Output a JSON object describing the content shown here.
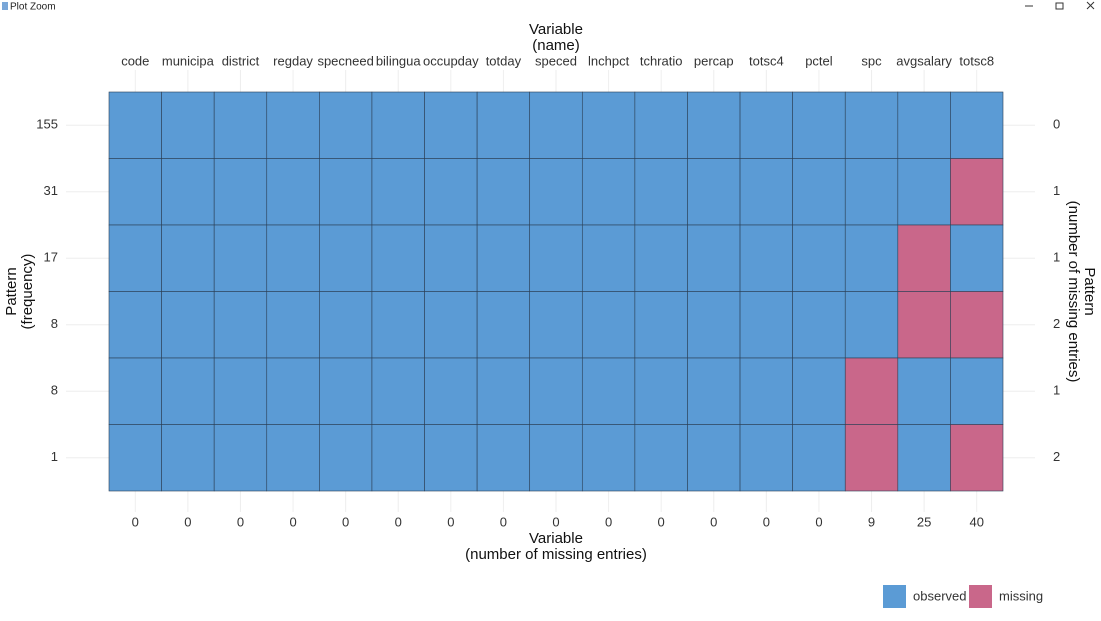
{
  "window": {
    "title": "Plot Zoom"
  },
  "chart_data": {
    "type": "missing-pattern",
    "x_top_title": [
      "Variable",
      "(name)"
    ],
    "x_bottom_title": [
      "Variable",
      "(number of missing entries)"
    ],
    "y_left_title": [
      "Pattern",
      "(frequency)"
    ],
    "y_right_title": [
      "Pattern",
      "(number of missing entries)"
    ],
    "variables": [
      "code",
      "municipa",
      "district",
      "regday",
      "specneed",
      "bilingua",
      "occupday",
      "totday",
      "speced",
      "lnchpct",
      "tchratio",
      "percap",
      "totsc4",
      "pctel",
      "spc",
      "avgsalary",
      "totsc8"
    ],
    "variable_missing": [
      0,
      0,
      0,
      0,
      0,
      0,
      0,
      0,
      0,
      0,
      0,
      0,
      0,
      0,
      9,
      25,
      40
    ],
    "pattern_frequency": [
      155,
      31,
      17,
      8,
      8,
      1
    ],
    "pattern_missing": [
      0,
      1,
      1,
      2,
      1,
      2
    ],
    "pattern": [
      [
        1,
        1,
        1,
        1,
        1,
        1,
        1,
        1,
        1,
        1,
        1,
        1,
        1,
        1,
        1,
        1,
        1
      ],
      [
        1,
        1,
        1,
        1,
        1,
        1,
        1,
        1,
        1,
        1,
        1,
        1,
        1,
        1,
        1,
        1,
        0
      ],
      [
        1,
        1,
        1,
        1,
        1,
        1,
        1,
        1,
        1,
        1,
        1,
        1,
        1,
        1,
        1,
        0,
        1
      ],
      [
        1,
        1,
        1,
        1,
        1,
        1,
        1,
        1,
        1,
        1,
        1,
        1,
        1,
        1,
        1,
        0,
        0
      ],
      [
        1,
        1,
        1,
        1,
        1,
        1,
        1,
        1,
        1,
        1,
        1,
        1,
        1,
        1,
        0,
        1,
        1
      ],
      [
        1,
        1,
        1,
        1,
        1,
        1,
        1,
        1,
        1,
        1,
        1,
        1,
        1,
        1,
        0,
        1,
        0
      ]
    ],
    "legend": [
      {
        "name": "observed",
        "color": "#5b9bd5"
      },
      {
        "name": "missing",
        "color": "#c9678a"
      }
    ]
  }
}
